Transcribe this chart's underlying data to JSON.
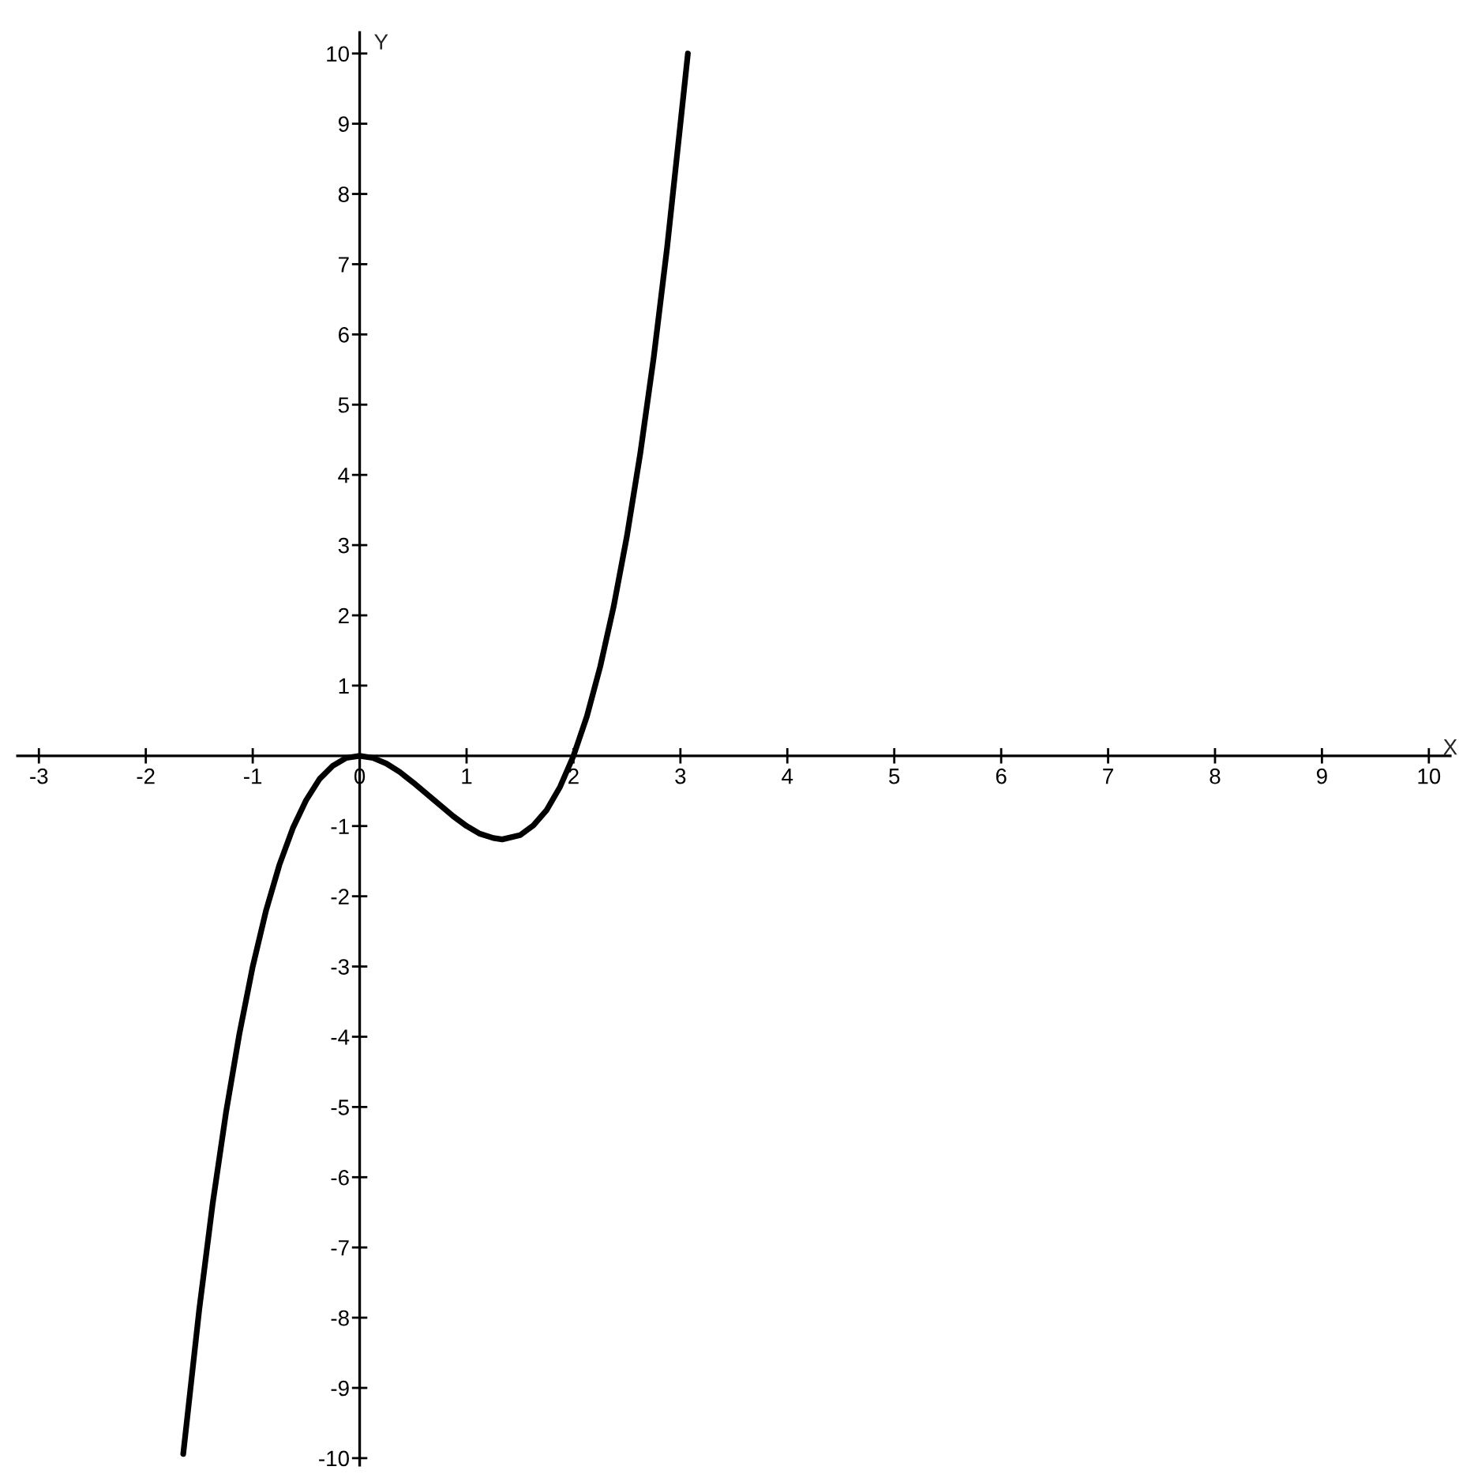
{
  "chart_data": {
    "type": "line",
    "xlabel": "X",
    "ylabel": "Y",
    "x": [
      -1.65,
      -1.5,
      -1.375,
      -1.25,
      -1.125,
      -1,
      -0.875,
      -0.75,
      -0.625,
      -0.5,
      -0.375,
      -0.25,
      -0.125,
      0,
      0.125,
      0.25,
      0.375,
      0.5,
      0.625,
      0.75,
      0.875,
      1,
      1.125,
      1.25,
      1.333,
      1.5,
      1.625,
      1.75,
      1.875,
      2,
      2.125,
      2.25,
      2.375,
      2.5,
      2.625,
      2.75,
      2.875,
      3,
      3.07
    ],
    "series": [
      {
        "color": "#000000",
        "values": [
          -9.94,
          -7.88,
          -6.38,
          -5.08,
          -3.96,
          -3.0,
          -2.2,
          -1.55,
          -1.03,
          -0.63,
          -0.33,
          -0.14,
          -0.03,
          0,
          -0.03,
          -0.11,
          -0.23,
          -0.38,
          -0.54,
          -0.7,
          -0.86,
          -1.0,
          -1.11,
          -1.17,
          -1.19,
          -1.13,
          -0.99,
          -0.77,
          -0.44,
          0,
          0.56,
          1.27,
          2.12,
          3.13,
          4.31,
          5.67,
          7.23,
          9.0,
          10.0
        ]
      }
    ],
    "xlim": [
      -3.2,
      10.2
    ],
    "ylim": [
      -10.1,
      10.3
    ],
    "xticks": [
      -3,
      -2,
      -1,
      0,
      1,
      2,
      3,
      4,
      5,
      6,
      7,
      8,
      9,
      10
    ],
    "yticks": [
      -10,
      -9,
      -8,
      -7,
      -6,
      -5,
      -4,
      -3,
      -2,
      -1,
      1,
      2,
      3,
      4,
      5,
      6,
      7,
      8,
      9,
      10
    ],
    "grid": false,
    "legend": false,
    "marker": "none",
    "line_style": "solid"
  }
}
